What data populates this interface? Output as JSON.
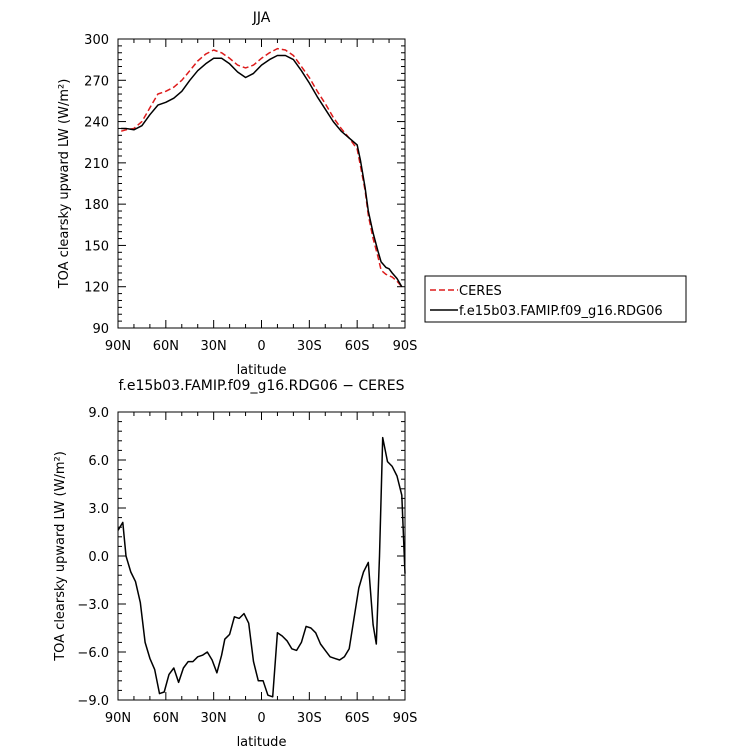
{
  "chart_data": [
    {
      "type": "line",
      "title": "JJA",
      "xlabel": "latitude",
      "ylabel": "TOA clearsky upward LW (W/m²)",
      "xlim": [
        90,
        -90
      ],
      "ylim": [
        90,
        300
      ],
      "x_ticks": [
        "90N",
        "60N",
        "30N",
        "0",
        "30S",
        "60S",
        "90S"
      ],
      "y_ticks": [
        "90",
        "120",
        "150",
        "180",
        "210",
        "240",
        "270",
        "300"
      ],
      "legend_position": "right",
      "series": [
        {
          "name": "CERES",
          "color": "#dd1c1c",
          "style": "dashed",
          "x": [
            88,
            85,
            80,
            75,
            70,
            65,
            60,
            55,
            50,
            45,
            40,
            35,
            30,
            25,
            20,
            15,
            10,
            5,
            0,
            -5,
            -10,
            -15,
            -20,
            -25,
            -30,
            -35,
            -40,
            -45,
            -50,
            -55,
            -60,
            -62,
            -65,
            -67,
            -70,
            -73,
            -75,
            -78,
            -80,
            -82,
            -85,
            -88
          ],
          "y": [
            233,
            234,
            235,
            240,
            250,
            260,
            262,
            265,
            270,
            277,
            284,
            289,
            292,
            290,
            286,
            281,
            279,
            281,
            286,
            290,
            293,
            292,
            288,
            280,
            272,
            262,
            253,
            243,
            235,
            228,
            220,
            208,
            190,
            172,
            155,
            142,
            132,
            129,
            128,
            127,
            124,
            120
          ]
        },
        {
          "name": "f.e15b03.FAMIP.f09_g16.RDG06",
          "color": "#000000",
          "style": "solid",
          "x": [
            88,
            85,
            80,
            75,
            70,
            65,
            60,
            55,
            50,
            45,
            40,
            35,
            30,
            25,
            20,
            15,
            10,
            5,
            0,
            -5,
            -10,
            -15,
            -20,
            -25,
            -30,
            -35,
            -40,
            -45,
            -50,
            -55,
            -60,
            -62,
            -65,
            -67,
            -70,
            -73,
            -75,
            -78,
            -80,
            -82,
            -85,
            -88
          ],
          "y": [
            235,
            235,
            234,
            237,
            245,
            252,
            254,
            257,
            262,
            270,
            277,
            282,
            286,
            286,
            282,
            276,
            272,
            275,
            281,
            285,
            288,
            288,
            285,
            277,
            268,
            258,
            249,
            240,
            233,
            228,
            223,
            212,
            192,
            175,
            159,
            146,
            138,
            134,
            133,
            130,
            126,
            120
          ]
        }
      ]
    },
    {
      "type": "line",
      "title": "f.e15b03.FAMIP.f09_g16.RDG06 − CERES",
      "xlabel": "latitude",
      "ylabel": "TOA clearsky upward LW (W/m²)",
      "xlim": [
        90,
        -90
      ],
      "ylim": [
        -9,
        9
      ],
      "x_ticks": [
        "90N",
        "60N",
        "30N",
        "0",
        "30S",
        "60S",
        "90S"
      ],
      "y_ticks": [
        "−9.0",
        "−6.0",
        "−3.0",
        "0.0",
        "3.0",
        "6.0",
        "9.0"
      ],
      "series": [
        {
          "name": "f.e15b03.FAMIP.f09_g16.RDG06 − CERES",
          "color": "#000000",
          "style": "solid",
          "x": [
            90,
            87,
            85,
            82,
            79,
            76,
            73,
            70,
            67,
            64,
            61,
            58,
            55,
            52,
            49,
            46,
            43,
            40,
            37,
            34,
            31,
            28,
            25,
            23,
            20,
            17,
            14,
            11,
            8,
            5,
            2,
            -1,
            -4,
            -7,
            -10,
            -13,
            -16,
            -19,
            -22,
            -25,
            -28,
            -31,
            -34,
            -37,
            -40,
            -43,
            -46,
            -49,
            -52,
            -55,
            -58,
            -61,
            -64,
            -67,
            -70,
            -72,
            -74,
            -76,
            -79,
            -82,
            -85,
            -88,
            -90
          ],
          "y": [
            1.6,
            2.1,
            0.0,
            -1.0,
            -1.6,
            -2.9,
            -5.4,
            -6.4,
            -7.1,
            -8.6,
            -8.5,
            -7.4,
            -7.0,
            -7.9,
            -7.0,
            -6.6,
            -6.6,
            -6.3,
            -6.2,
            -6.0,
            -6.5,
            -7.3,
            -6.2,
            -5.2,
            -4.9,
            -3.8,
            -3.9,
            -3.6,
            -4.2,
            -6.6,
            -7.8,
            -7.8,
            -8.7,
            -8.8,
            -4.8,
            -5.0,
            -5.3,
            -5.8,
            -5.9,
            -5.4,
            -4.4,
            -4.5,
            -4.8,
            -5.5,
            -5.9,
            -6.3,
            -6.4,
            -6.5,
            -6.3,
            -5.8,
            -3.9,
            -2.0,
            -1.0,
            -0.4,
            -4.3,
            -5.5,
            0.0,
            7.4,
            5.9,
            5.6,
            5.0,
            3.8,
            -1.1
          ]
        }
      ]
    }
  ]
}
